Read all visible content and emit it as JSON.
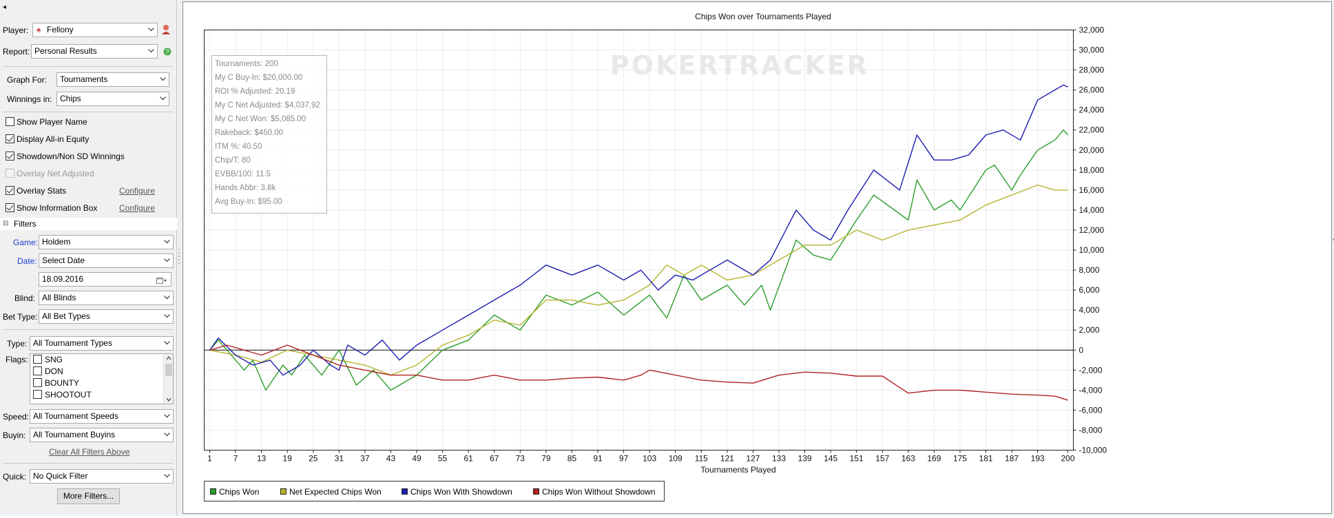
{
  "window": {
    "collapse_glyph": "◂"
  },
  "left_panel": {
    "player": {
      "label": "Player:",
      "value": "Fellony",
      "icon": "spade-icon",
      "side_icon": "user-icon"
    },
    "report": {
      "label": "Report:",
      "value": "Personal Results",
      "help_icon": "help-icon"
    },
    "graph_for": {
      "label": "Graph For:",
      "value": "Tournaments"
    },
    "winnings_in": {
      "label": "Winnings in:",
      "value": "Chips"
    },
    "checkboxes": [
      {
        "label": "Show Player Name",
        "checked": false,
        "enabled": true
      },
      {
        "label": "Display All-in Equity",
        "checked": true,
        "enabled": true
      },
      {
        "label": "Showdown/Non SD Winnings",
        "checked": true,
        "enabled": true
      },
      {
        "label": "Overlay Net Adjusted",
        "checked": false,
        "enabled": false
      },
      {
        "label": "Overlay Stats",
        "checked": true,
        "enabled": true,
        "link": "Configure"
      },
      {
        "label": "Show Information Box",
        "checked": true,
        "enabled": true,
        "link": "Configure"
      }
    ],
    "filters": {
      "title": "Filters",
      "collapse_glyph": "⊟",
      "game": {
        "label": "Game:",
        "value": "Holdem"
      },
      "date": {
        "label": "Date:",
        "value": "Select Date"
      },
      "date_value": "18.09.2016",
      "blind": {
        "label": "Blind:",
        "value": "All Blinds"
      },
      "bet_type": {
        "label": "Bet Type:",
        "value": "All Bet Types"
      },
      "type": {
        "label": "Type:",
        "value": "All Tournament Types"
      },
      "flags": {
        "label": "Flags:",
        "items": [
          "SNG",
          "DON",
          "BOUNTY",
          "SHOOTOUT"
        ]
      },
      "speed": {
        "label": "Speed:",
        "value": "All Tournament Speeds"
      },
      "buyin": {
        "label": "Buyin:",
        "value": "All Tournament Buyins"
      },
      "clear_link": "Clear All Filters Above",
      "quick": {
        "label": "Quick:",
        "value": "No Quick Filter"
      },
      "more_button": "More Filters..."
    }
  },
  "info_box": {
    "lines": [
      "Tournaments: 200",
      "My C Buy-In: $20,000.00",
      "ROI % Adjusted: 20.19",
      "My C Net Adjusted: $4,037.92",
      "My C Net Won: $5,085.00",
      "Rakeback: $450.00",
      "ITM %: 40.50",
      "Chip/T: 80",
      "EVBB/100: 11.5",
      "Hands Abbr: 3.8k",
      "Avg Buy-In: $95.00"
    ]
  },
  "watermark": "POKERTRACKER",
  "side_marker": "*",
  "legend": [
    {
      "label": "Chips Won",
      "color": "#2a9d2a"
    },
    {
      "label": "Net Expected Chips Won",
      "color": "#b3b32a"
    },
    {
      "label": "Chips Won With Showdown",
      "color": "#1c1cb0"
    },
    {
      "label": "Chips Won Without Showdown",
      "color": "#b02020"
    }
  ],
  "chart_data": {
    "type": "line",
    "title": "Chips Won over Tournaments Played",
    "xlabel": "Tournaments Played",
    "ylabel": "",
    "xlim": [
      1,
      200
    ],
    "ylim": [
      -10000,
      32000
    ],
    "x_ticks": [
      1,
      7,
      13,
      19,
      25,
      31,
      37,
      43,
      49,
      55,
      61,
      67,
      73,
      79,
      85,
      91,
      97,
      103,
      109,
      115,
      121,
      127,
      133,
      139,
      145,
      151,
      157,
      163,
      169,
      175,
      181,
      187,
      193,
      200
    ],
    "y_ticks": [
      -10000,
      -8000,
      -6000,
      -4000,
      -2000,
      0,
      2000,
      4000,
      6000,
      8000,
      10000,
      12000,
      14000,
      16000,
      18000,
      20000,
      22000,
      24000,
      26000,
      28000,
      30000,
      32000
    ],
    "y_tick_labels": [
      "-10,000",
      "-8,000",
      "-6,000",
      "-4,000",
      "-2,000",
      "0",
      "2,000",
      "4,000",
      "6,000",
      "8,000",
      "10,000",
      "12,000",
      "14,000",
      "16,000",
      "18,000",
      "20,000",
      "22,000",
      "24,000",
      "26,000",
      "28,000",
      "30,000",
      "32,000"
    ],
    "grid": true,
    "series": [
      {
        "name": "Chips Won",
        "color": "#2a9d2a",
        "points": [
          [
            1,
            0
          ],
          [
            3,
            1000
          ],
          [
            7,
            -1000
          ],
          [
            9,
            -2000
          ],
          [
            11,
            -1000
          ],
          [
            14,
            -4000
          ],
          [
            18,
            -1500
          ],
          [
            20,
            -2500
          ],
          [
            23,
            -500
          ],
          [
            27,
            -2500
          ],
          [
            31,
            0
          ],
          [
            35,
            -3500
          ],
          [
            39,
            -2000
          ],
          [
            43,
            -4000
          ],
          [
            49,
            -2500
          ],
          [
            55,
            0
          ],
          [
            61,
            1000
          ],
          [
            67,
            3500
          ],
          [
            73,
            2000
          ],
          [
            79,
            5500
          ],
          [
            85,
            4500
          ],
          [
            91,
            5800
          ],
          [
            97,
            3500
          ],
          [
            103,
            5500
          ],
          [
            107,
            3200
          ],
          [
            111,
            7500
          ],
          [
            115,
            5000
          ],
          [
            121,
            6500
          ],
          [
            125,
            4500
          ],
          [
            129,
            6500
          ],
          [
            131,
            4000
          ],
          [
            137,
            11000
          ],
          [
            141,
            9500
          ],
          [
            145,
            9000
          ],
          [
            151,
            13000
          ],
          [
            155,
            15500
          ],
          [
            163,
            13000
          ],
          [
            165,
            17000
          ],
          [
            169,
            14000
          ],
          [
            173,
            15000
          ],
          [
            175,
            14000
          ],
          [
            181,
            18000
          ],
          [
            183,
            18500
          ],
          [
            187,
            16000
          ],
          [
            189,
            17500
          ],
          [
            193,
            20000
          ],
          [
            197,
            21000
          ],
          [
            199,
            22000
          ],
          [
            200,
            21500
          ]
        ]
      },
      {
        "name": "Net Expected Chips Won",
        "color": "#b3b32a",
        "points": [
          [
            1,
            0
          ],
          [
            7,
            -500
          ],
          [
            13,
            -1200
          ],
          [
            19,
            0
          ],
          [
            25,
            -500
          ],
          [
            31,
            -1000
          ],
          [
            37,
            -1500
          ],
          [
            43,
            -2500
          ],
          [
            49,
            -1500
          ],
          [
            55,
            500
          ],
          [
            61,
            1500
          ],
          [
            67,
            3000
          ],
          [
            73,
            2500
          ],
          [
            79,
            5000
          ],
          [
            85,
            5000
          ],
          [
            91,
            4500
          ],
          [
            97,
            5000
          ],
          [
            103,
            6500
          ],
          [
            107,
            8500
          ],
          [
            111,
            7500
          ],
          [
            115,
            8500
          ],
          [
            121,
            7000
          ],
          [
            127,
            7500
          ],
          [
            133,
            9000
          ],
          [
            139,
            10500
          ],
          [
            145,
            10500
          ],
          [
            151,
            12000
          ],
          [
            157,
            11000
          ],
          [
            163,
            12000
          ],
          [
            169,
            12500
          ],
          [
            175,
            13000
          ],
          [
            181,
            14500
          ],
          [
            187,
            15500
          ],
          [
            193,
            16500
          ],
          [
            197,
            16000
          ],
          [
            200,
            16000
          ]
        ]
      },
      {
        "name": "Chips Won With Showdown",
        "color": "#1c1cb0",
        "points": [
          [
            1,
            0
          ],
          [
            3,
            1200
          ],
          [
            7,
            -500
          ],
          [
            11,
            -1500
          ],
          [
            15,
            -1000
          ],
          [
            18,
            -2500
          ],
          [
            22,
            -1500
          ],
          [
            25,
            0
          ],
          [
            29,
            -1500
          ],
          [
            31,
            -2000
          ],
          [
            33,
            500
          ],
          [
            37,
            -500
          ],
          [
            41,
            1000
          ],
          [
            45,
            -1000
          ],
          [
            49,
            500
          ],
          [
            55,
            2000
          ],
          [
            61,
            3500
          ],
          [
            67,
            5000
          ],
          [
            73,
            6500
          ],
          [
            79,
            8500
          ],
          [
            85,
            7500
          ],
          [
            91,
            8500
          ],
          [
            97,
            7000
          ],
          [
            101,
            8000
          ],
          [
            105,
            6000
          ],
          [
            109,
            7500
          ],
          [
            113,
            7000
          ],
          [
            115,
            7500
          ],
          [
            121,
            9000
          ],
          [
            125,
            8000
          ],
          [
            127,
            7500
          ],
          [
            131,
            9000
          ],
          [
            137,
            14000
          ],
          [
            141,
            12000
          ],
          [
            145,
            11000
          ],
          [
            149,
            14000
          ],
          [
            155,
            18000
          ],
          [
            161,
            16000
          ],
          [
            165,
            21500
          ],
          [
            169,
            19000
          ],
          [
            173,
            19000
          ],
          [
            177,
            19500
          ],
          [
            181,
            21500
          ],
          [
            185,
            22000
          ],
          [
            189,
            21000
          ],
          [
            193,
            25000
          ],
          [
            197,
            26000
          ],
          [
            199,
            26500
          ],
          [
            200,
            26300
          ]
        ]
      },
      {
        "name": "Chips Won Without Showdown",
        "color": "#b02020",
        "points": [
          [
            1,
            0
          ],
          [
            5,
            500
          ],
          [
            9,
            0
          ],
          [
            13,
            -500
          ],
          [
            19,
            500
          ],
          [
            25,
            -500
          ],
          [
            31,
            -1500
          ],
          [
            37,
            -2000
          ],
          [
            43,
            -2500
          ],
          [
            49,
            -2500
          ],
          [
            55,
            -3000
          ],
          [
            61,
            -3000
          ],
          [
            67,
            -2500
          ],
          [
            73,
            -3000
          ],
          [
            79,
            -3000
          ],
          [
            85,
            -2800
          ],
          [
            91,
            -2700
          ],
          [
            97,
            -3000
          ],
          [
            101,
            -2500
          ],
          [
            103,
            -2000
          ],
          [
            109,
            -2500
          ],
          [
            115,
            -3000
          ],
          [
            121,
            -3200
          ],
          [
            127,
            -3300
          ],
          [
            133,
            -2500
          ],
          [
            139,
            -2200
          ],
          [
            145,
            -2300
          ],
          [
            151,
            -2600
          ],
          [
            157,
            -2600
          ],
          [
            163,
            -4300
          ],
          [
            169,
            -4000
          ],
          [
            175,
            -4000
          ],
          [
            181,
            -4200
          ],
          [
            187,
            -4400
          ],
          [
            193,
            -4500
          ],
          [
            197,
            -4600
          ],
          [
            200,
            -5000
          ]
        ]
      }
    ]
  }
}
